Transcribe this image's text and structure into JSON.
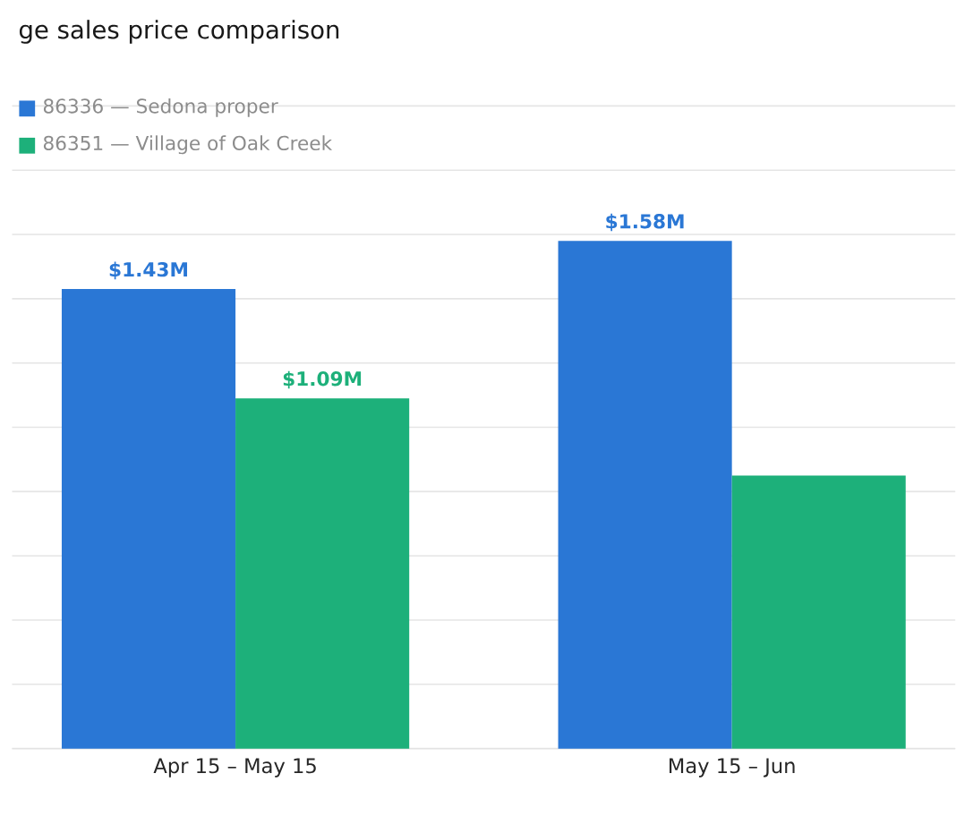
{
  "chart_data": {
    "type": "bar",
    "title": "ge sales price comparison",
    "categories": [
      "Apr 15 – May 15",
      "May 15 – Jun"
    ],
    "series": [
      {
        "name": "86336 — Sedona proper",
        "color": "#2a77d5",
        "values": [
          1.43,
          1.58
        ],
        "value_labels": [
          "$1.43M",
          "$1.58M"
        ]
      },
      {
        "name": "86351 — Village of Oak Creek",
        "color": "#1db07a",
        "values": [
          1.09,
          0.85
        ],
        "value_labels": [
          "$1.09M",
          null
        ]
      }
    ],
    "ylim": [
      0,
      2
    ],
    "grid": "y",
    "legend": "top left",
    "tick_labels": "x"
  }
}
